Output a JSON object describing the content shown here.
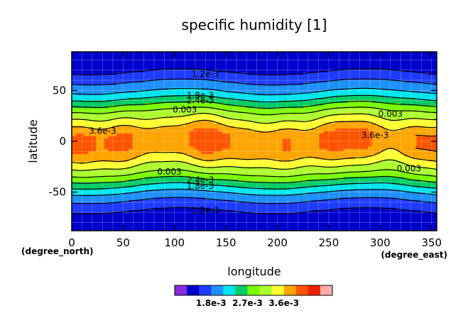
{
  "chart_data": {
    "type": "heatmap",
    "title": "specific humidity [1]",
    "xlabel": "longitude",
    "ylabel": "latitude",
    "x_units": "(degree_east)",
    "y_units": "(degree_north)",
    "xlim": [
      0,
      355
    ],
    "ylim": [
      -88,
      88
    ],
    "x_ticks": [
      0,
      50,
      100,
      150,
      200,
      250,
      300,
      350
    ],
    "y_ticks": [
      50,
      0,
      -50
    ],
    "contour_interval": 0.0003,
    "colorbar_ticks": [
      "1.8e-3",
      "2.7e-3",
      "3.6e-3"
    ],
    "contour_labels": [
      {
        "text": "1.2e-3",
        "lon": 130,
        "lat": 66
      },
      {
        "text": "1.8e-3",
        "lon": 125,
        "lat": 45
      },
      {
        "text": "2.4e-3",
        "lon": 125,
        "lat": 40
      },
      {
        "text": "0.003",
        "lon": 110,
        "lat": 31
      },
      {
        "text": "0.003",
        "lon": 310,
        "lat": 27
      },
      {
        "text": "3.6e-3",
        "lon": 30,
        "lat": 10
      },
      {
        "text": "3.6e-3",
        "lon": 295,
        "lat": 6
      },
      {
        "text": "0.003",
        "lon": 95,
        "lat": -30
      },
      {
        "text": "0.003",
        "lon": 328,
        "lat": -27
      },
      {
        "text": "2.4e-3",
        "lon": 125,
        "lat": -38
      },
      {
        "text": "1.8e-3",
        "lon": 125,
        "lat": -44
      },
      {
        "text": "1.2e-3",
        "lon": 130,
        "lat": -68
      }
    ],
    "levels": [
      0.0012,
      0.0015,
      0.0018,
      0.0021,
      0.0024,
      0.0027,
      0.003,
      0.0033,
      0.0036
    ],
    "colormap": [
      "#8a2be2",
      "#0000cd",
      "#1e3cff",
      "#1e90ff",
      "#00e5ee",
      "#00cd66",
      "#7cfc00",
      "#adff2f",
      "#ffff33",
      "#ffa500",
      "#ff5500",
      "#ee2200",
      "#ffaaaa"
    ],
    "approximate_data_note": "",
    "rows": {
      "lat": [
        -88,
        -75,
        -65,
        -55,
        -48,
        -42,
        -36,
        -30,
        -22,
        -14,
        -6,
        0,
        6,
        12,
        20,
        28,
        34,
        40,
        46,
        55,
        65,
        75,
        88
      ],
      "q": [
        0.0008,
        0.001,
        0.0013,
        0.0016,
        0.0019,
        0.0022,
        0.0025,
        0.0028,
        0.0031,
        0.0034,
        0.0036,
        0.0036,
        0.0036,
        0.0034,
        0.0031,
        0.0028,
        0.0025,
        0.0022,
        0.0019,
        0.0016,
        0.0013,
        0.001,
        0.0008
      ]
    }
  }
}
